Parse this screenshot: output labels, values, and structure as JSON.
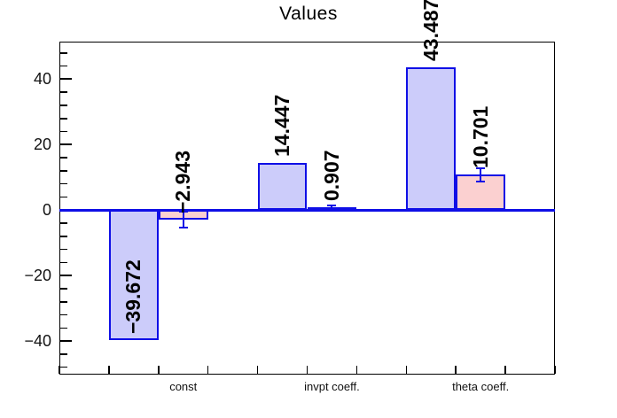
{
  "title": "Values",
  "colors": {
    "blue_fill": "#ccccfa",
    "pink_fill": "#fbd0d0",
    "line_blue": "#0f0fe6",
    "frame": "#000000",
    "text": "#000000"
  },
  "chart_data": {
    "type": "bar",
    "title": "Values",
    "xlabel": "",
    "ylabel": "",
    "ylim": [
      -50.3,
      51.4
    ],
    "y_major_ticks": [
      {
        "value": -40,
        "label": "−40"
      },
      {
        "value": -20,
        "label": "−20"
      },
      {
        "value": 0,
        "label": "0"
      },
      {
        "value": 20,
        "label": "20"
      },
      {
        "value": 40,
        "label": "40"
      }
    ],
    "y_minor_step": 4,
    "n_bins": 10,
    "grid": false,
    "legend": null,
    "zero_baseline": true,
    "categories": [
      {
        "label": "const",
        "bin_index": 2
      },
      {
        "label": "invpt coeff.",
        "bin_index": 5
      },
      {
        "label": "theta coeff.",
        "bin_index": 8
      }
    ],
    "series_colors": {
      "blue": {
        "fill": "#ccccfa",
        "border": "#0f0fe6"
      },
      "pink": {
        "fill": "#fbd0d0",
        "border": "#0f0fe6"
      }
    },
    "bars": [
      {
        "bin_index": 1,
        "series": "blue",
        "value": -39.672,
        "label": "−39.672",
        "error": 0
      },
      {
        "bin_index": 2,
        "series": "pink",
        "value": -2.943,
        "label": "−2.943",
        "error": 2.4
      },
      {
        "bin_index": 4,
        "series": "blue",
        "value": 14.447,
        "label": "14.447",
        "error": 0
      },
      {
        "bin_index": 5,
        "series": "pink",
        "value": 0.907,
        "label": "0.907",
        "error": 0.45
      },
      {
        "bin_index": 7,
        "series": "blue",
        "value": 43.487,
        "label": "43.487",
        "error": 0
      },
      {
        "bin_index": 8,
        "series": "pink",
        "value": 10.701,
        "label": "10.701",
        "error": 2.0
      }
    ]
  }
}
